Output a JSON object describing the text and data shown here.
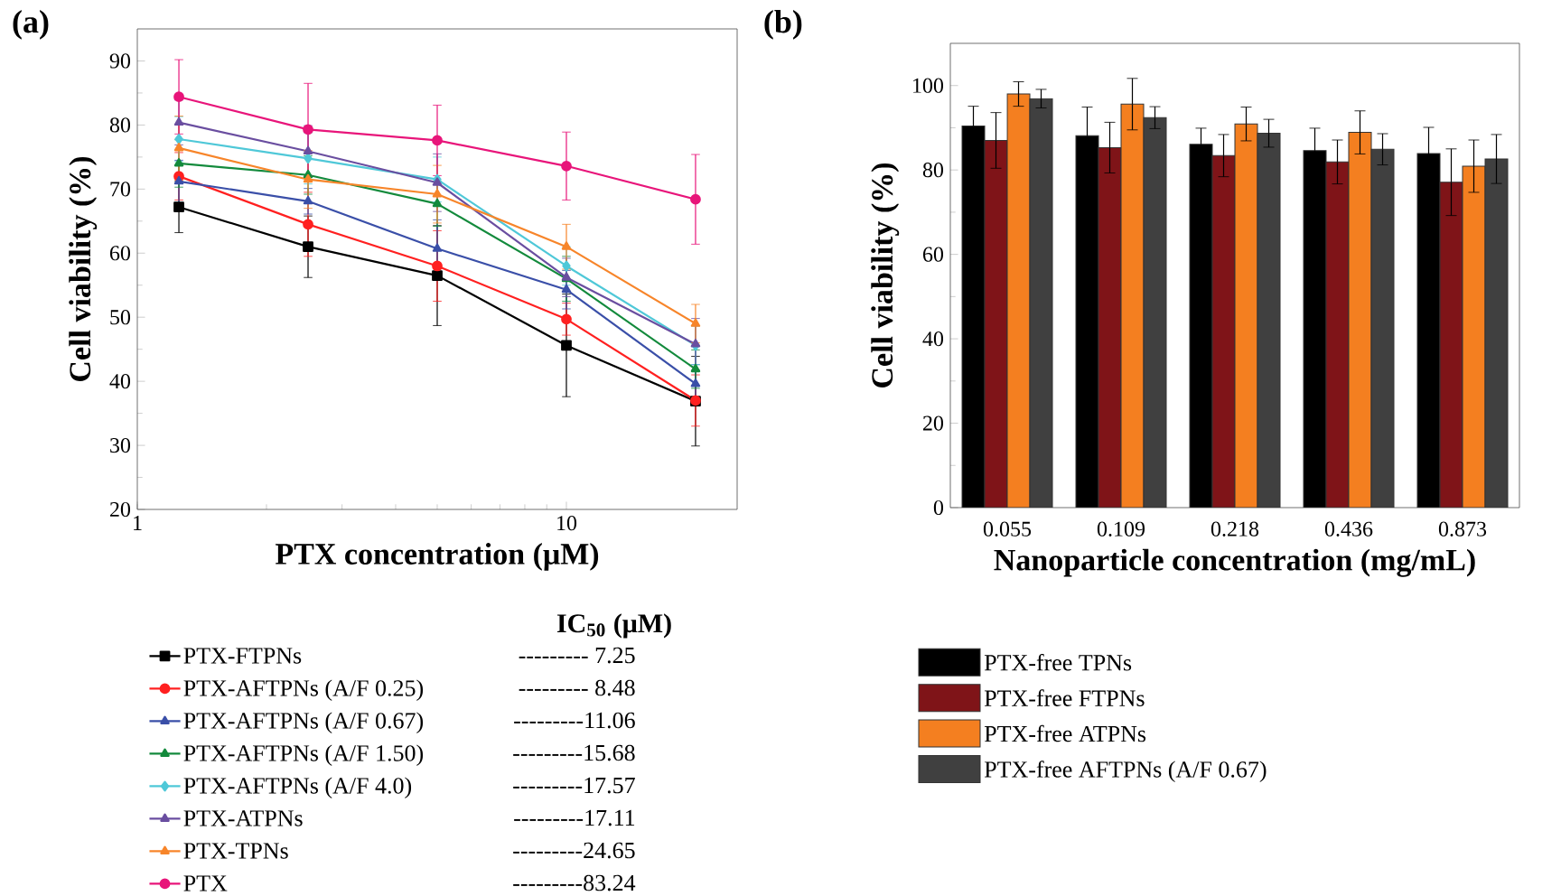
{
  "chart_data": [
    {
      "type": "line",
      "title": "(a)",
      "xlabel": "PTX concentration (μM)",
      "ylabel": "Cell viability (%)",
      "x": [
        1.25,
        2.5,
        5,
        10,
        20
      ],
      "log": "x",
      "xlim": [
        1,
        25
      ],
      "xticks": [
        1,
        10
      ],
      "ylim": [
        20,
        95
      ],
      "yticks": [
        20,
        30,
        40,
        50,
        60,
        70,
        80,
        90
      ],
      "legend": "bottom",
      "grid": false,
      "series": [
        {
          "name": "PTX-FTPNs",
          "color": "#000000",
          "marker": "square",
          "values": [
            67.2,
            61.0,
            56.5,
            45.6,
            36.9
          ],
          "errors": [
            4,
            4.8,
            7.8,
            8,
            7
          ]
        },
        {
          "name": "PTX-AFTPNs (A/F 0.25)",
          "color": "#ff2020",
          "marker": "circle",
          "values": [
            72.0,
            64.5,
            58.0,
            49.7,
            37.0
          ],
          "errors": [
            3.7,
            5,
            5.5,
            2.5,
            4
          ]
        },
        {
          "name": "PTX-AFTPNs (A/F 0.67)",
          "color": "#3a4fa8",
          "marker": "triangle",
          "values": [
            71.2,
            68.1,
            60.7,
            54.3,
            39.6
          ],
          "errors": [
            3.3,
            2,
            4.5,
            3,
            3
          ]
        },
        {
          "name": "PTX-AFTPNs (A/F 1.50)",
          "color": "#138a3c",
          "marker": "triangle",
          "values": [
            74.0,
            72.2,
            67.7,
            56.0,
            41.9
          ],
          "errors": [
            3.7,
            3,
            3.5,
            3.5,
            3
          ]
        },
        {
          "name": "PTX-AFTPNs (A/F 4.0)",
          "color": "#4fc8d8",
          "marker": "diamond",
          "values": [
            77.8,
            74.8,
            71.5,
            58.0,
            45.6
          ],
          "errors": [
            3.5,
            4,
            3.5,
            3,
            3
          ]
        },
        {
          "name": "PTX-ATPNs",
          "color": "#6a4ea0",
          "marker": "triangle",
          "values": [
            80.4,
            75.9,
            71.0,
            56.2,
            45.8
          ],
          "errors": [
            3.5,
            4,
            4.5,
            3,
            4
          ]
        },
        {
          "name": "PTX-TPNs",
          "color": "#f7852a",
          "marker": "triangle",
          "values": [
            76.4,
            71.5,
            69.2,
            61.0,
            49.0
          ],
          "errors": [
            5,
            4.5,
            4.5,
            3.5,
            3
          ]
        },
        {
          "name": "PTX",
          "color": "#e8157a",
          "marker": "circle",
          "values": [
            84.4,
            79.3,
            77.6,
            73.6,
            68.4
          ],
          "errors": [
            5.8,
            7.2,
            5.5,
            5.3,
            7
          ]
        }
      ],
      "annotations": [
        "IC$_{50}$ (μM)",
        "---------  7.25",
        "---------  8.48",
        "---------11.06",
        "---------15.68",
        "---------17.57",
        "---------17.11",
        "---------24.65",
        "---------83.24"
      ]
    },
    {
      "type": "bar",
      "title": "(b)",
      "xlabel": "Nanoparticle concentration (mg/mL)",
      "ylabel": "Cell viability (%)",
      "categories": [
        "0.055",
        "0.109",
        "0.218",
        "0.436",
        "0.873"
      ],
      "ylim": [
        0,
        110
      ],
      "yticks": [
        0,
        20,
        40,
        60,
        80,
        100
      ],
      "legend": "bottom",
      "grid": false,
      "series": [
        {
          "name": "PTX-free TPNs",
          "color": "#000000",
          "values": [
            90.4,
            88.1,
            86.1,
            84.6,
            83.9
          ],
          "errors": [
            4.7,
            6.8,
            3.8,
            5.3,
            6.2
          ]
        },
        {
          "name": "PTX-free FTPNs",
          "color": "#7f1418",
          "values": [
            87.0,
            85.3,
            83.4,
            81.9,
            77.1
          ],
          "errors": [
            6.6,
            6,
            5,
            5.2,
            7.9
          ]
        },
        {
          "name": "PTX-free ATPNs",
          "color": "#f47f20",
          "values": [
            98.0,
            95.6,
            90.9,
            88.9,
            80.9
          ],
          "errors": [
            2.9,
            6.1,
            4,
            5.1,
            6.2
          ]
        },
        {
          "name": "PTX-free AFTPNs (A/F 0.67)",
          "color": "#404040",
          "values": [
            96.9,
            92.4,
            88.7,
            84.9,
            82.6
          ],
          "errors": [
            2.2,
            2.6,
            3.3,
            3.7,
            5.8
          ]
        }
      ]
    }
  ]
}
